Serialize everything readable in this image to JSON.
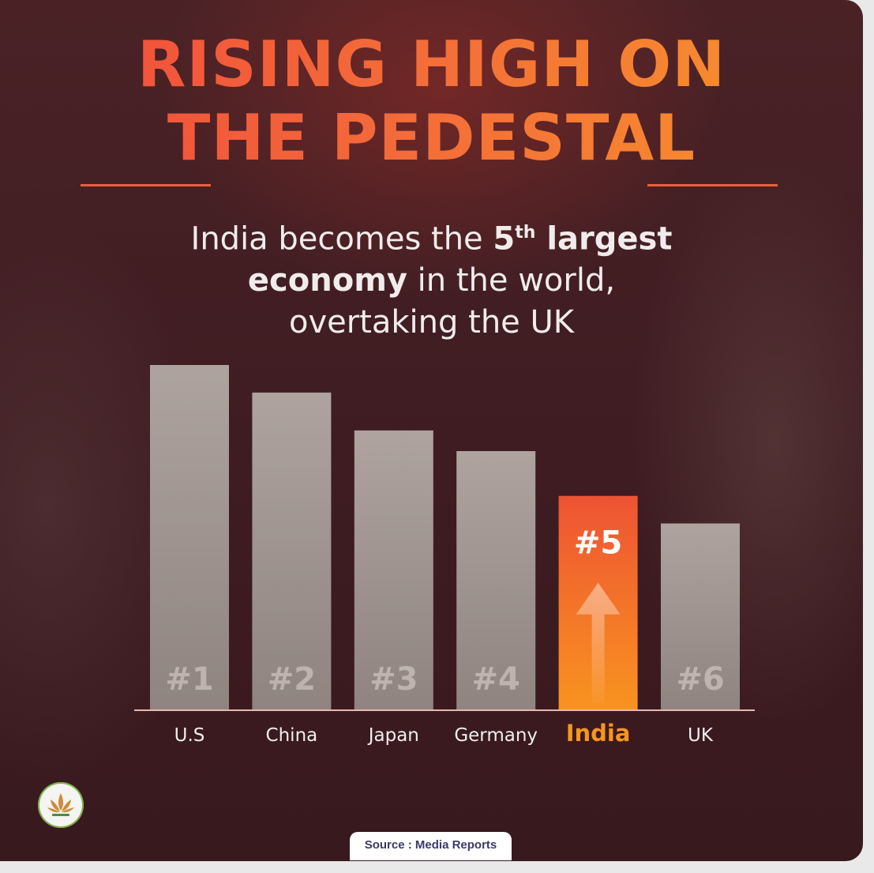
{
  "title_line1": "RISING HIGH ON",
  "title_line2": "THE PEDESTAL",
  "subtitle": {
    "line1_pre": "India becomes the ",
    "line1_num": "5",
    "line1_sup": "th",
    "line1_bold": " largest",
    "line2_bold": "economy",
    "line2_rest": " in the world,",
    "line3": "overtaking the UK"
  },
  "source": "Source : Media Reports",
  "colors": {
    "bar_default": "#a79b96",
    "bar_highlight_top": "#ee5334",
    "bar_highlight_bottom": "#f8931f",
    "label_default": "#eeeeee",
    "label_highlight": "#f7951f"
  },
  "chart_data": {
    "type": "bar",
    "categories": [
      "U.S",
      "China",
      "Japan",
      "Germany",
      "India",
      "UK"
    ],
    "ranks": [
      "#1",
      "#2",
      "#3",
      "#4",
      "#5",
      "#6"
    ],
    "values": [
      100,
      92,
      81,
      75,
      62,
      54
    ],
    "highlight": "India",
    "ylim": [
      0,
      100
    ],
    "grid": false,
    "axes": false
  }
}
